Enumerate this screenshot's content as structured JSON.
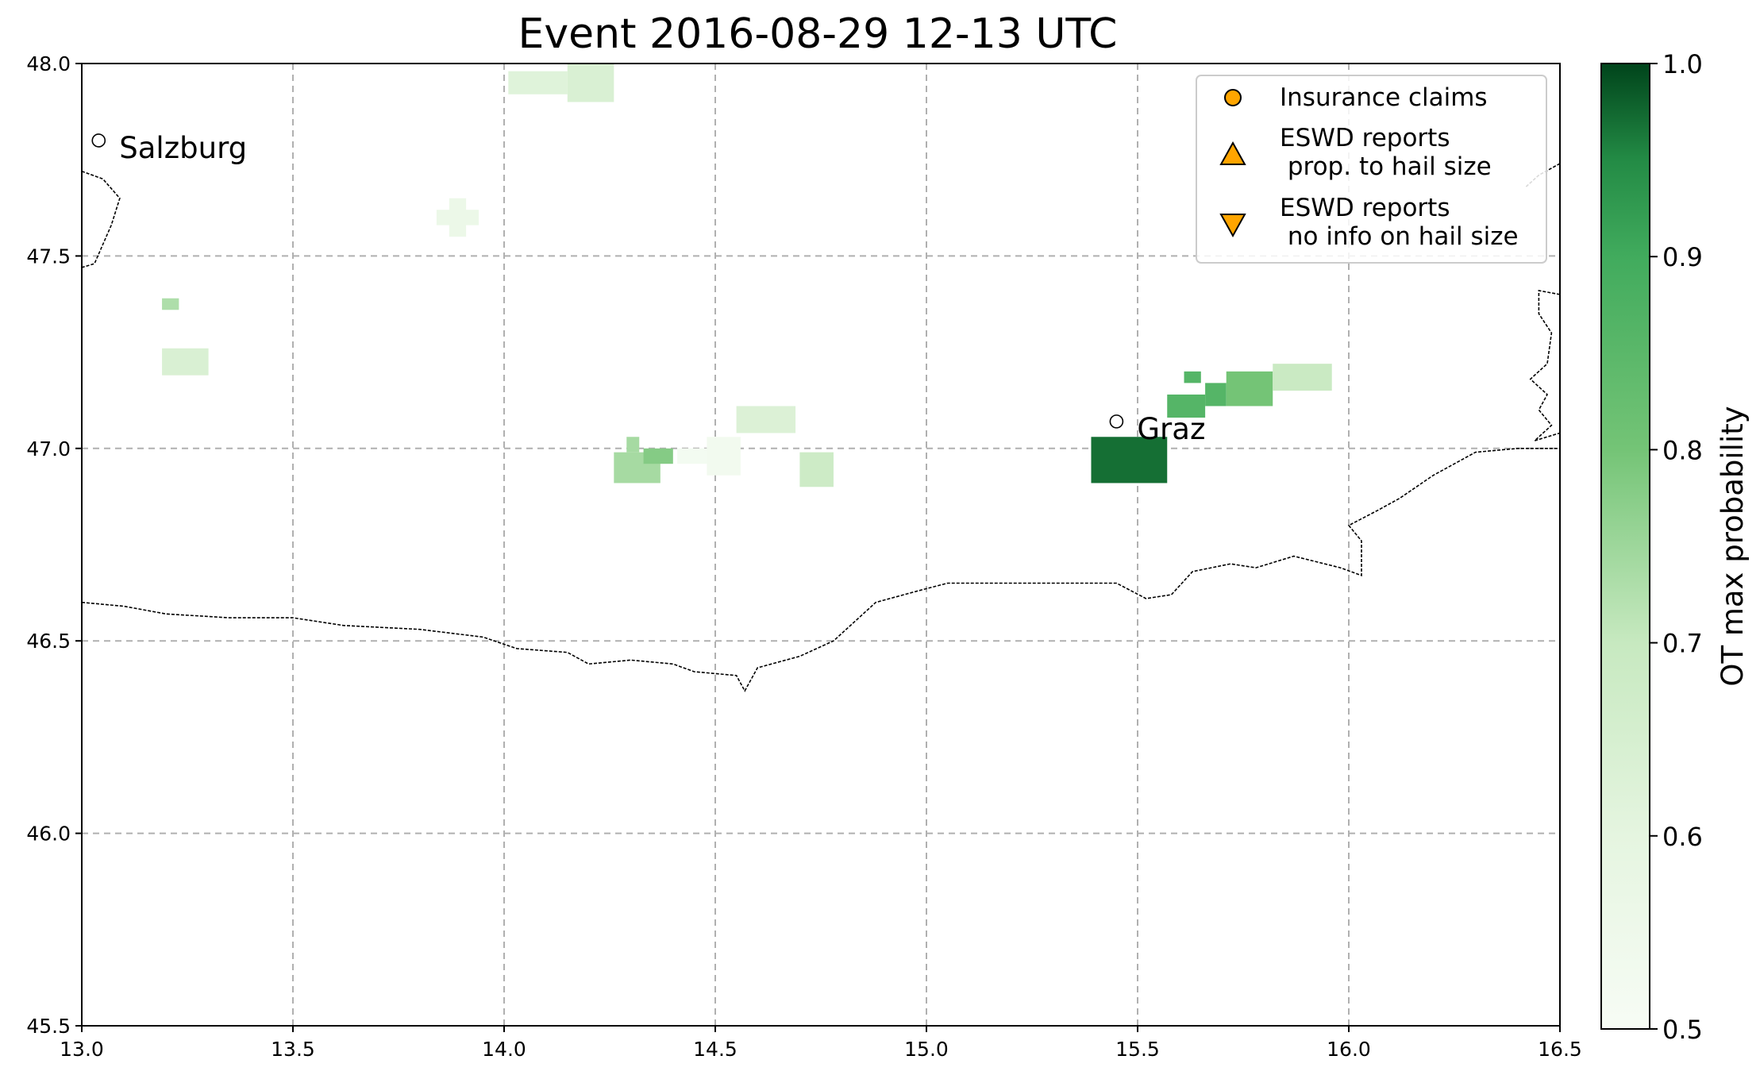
{
  "chart_data": {
    "type": "heatmap",
    "title": "Event 2016-08-29 12-13 UTC",
    "xlim": [
      13.0,
      16.5
    ],
    "ylim": [
      45.5,
      48.0
    ],
    "x_ticks": [
      "13.0",
      "13.5",
      "14.0",
      "14.5",
      "15.0",
      "15.5",
      "16.0",
      "16.5"
    ],
    "y_ticks": [
      "45.5",
      "46.0",
      "46.5",
      "47.0",
      "47.5",
      "48.0"
    ],
    "grid": true,
    "colorbar": {
      "label": "OT max probability",
      "range": [
        0.5,
        1.0
      ],
      "ticks": [
        "0.5",
        "0.6",
        "0.7",
        "0.8",
        "0.9",
        "1.0"
      ]
    },
    "cities": [
      {
        "name": "Salzburg",
        "lon": 13.04,
        "lat": 47.8
      },
      {
        "name": "Graz",
        "lon": 15.45,
        "lat": 47.07
      }
    ],
    "legend": {
      "placement": "top-right",
      "entries": [
        {
          "label": "Insurance claims",
          "marker": "circle"
        },
        {
          "label": "ESWD reports\n prop. to hail size",
          "marker": "triangle-up"
        },
        {
          "label": "ESWD reports\n no info on hail size",
          "marker": "triangle-down"
        }
      ],
      "marker_color": "#ffa500"
    },
    "ot_cells": [
      {
        "lon0": 14.01,
        "lon1": 14.15,
        "lat0": 47.92,
        "lat1": 47.98,
        "p": 0.62
      },
      {
        "lon0": 14.15,
        "lon1": 14.26,
        "lat0": 47.9,
        "lat1": 48.0,
        "p": 0.64
      },
      {
        "lon0": 13.84,
        "lon1": 13.94,
        "lat0": 47.58,
        "lat1": 47.62,
        "p": 0.56
      },
      {
        "lon0": 13.87,
        "lon1": 13.91,
        "lat0": 47.55,
        "lat1": 47.65,
        "p": 0.56
      },
      {
        "lon0": 13.19,
        "lon1": 13.23,
        "lat0": 47.36,
        "lat1": 47.39,
        "p": 0.73
      },
      {
        "lon0": 13.19,
        "lon1": 13.3,
        "lat0": 47.19,
        "lat1": 47.26,
        "p": 0.64
      },
      {
        "lon0": 14.26,
        "lon1": 14.37,
        "lat0": 46.91,
        "lat1": 46.99,
        "p": 0.74
      },
      {
        "lon0": 14.29,
        "lon1": 14.32,
        "lat0": 46.99,
        "lat1": 47.03,
        "p": 0.74
      },
      {
        "lon0": 14.33,
        "lon1": 14.4,
        "lat0": 46.96,
        "lat1": 47.0,
        "p": 0.78
      },
      {
        "lon0": 14.41,
        "lon1": 14.5,
        "lat0": 46.96,
        "lat1": 47.0,
        "p": 0.52
      },
      {
        "lon0": 14.48,
        "lon1": 14.56,
        "lat0": 46.93,
        "lat1": 47.03,
        "p": 0.53
      },
      {
        "lon0": 14.55,
        "lon1": 14.69,
        "lat0": 47.04,
        "lat1": 47.11,
        "p": 0.63
      },
      {
        "lon0": 14.7,
        "lon1": 14.78,
        "lat0": 46.9,
        "lat1": 46.99,
        "p": 0.68
      },
      {
        "lon0": 15.39,
        "lon1": 15.57,
        "lat0": 46.91,
        "lat1": 47.03,
        "p": 0.97
      },
      {
        "lon0": 15.57,
        "lon1": 15.66,
        "lat0": 47.08,
        "lat1": 47.14,
        "p": 0.86
      },
      {
        "lon0": 15.66,
        "lon1": 15.71,
        "lat0": 47.11,
        "lat1": 47.17,
        "p": 0.86
      },
      {
        "lon0": 15.61,
        "lon1": 15.65,
        "lat0": 47.17,
        "lat1": 47.2,
        "p": 0.86
      },
      {
        "lon0": 15.71,
        "lon1": 15.82,
        "lat0": 47.11,
        "lat1": 47.2,
        "p": 0.8
      },
      {
        "lon0": 15.82,
        "lon1": 15.96,
        "lat0": 47.15,
        "lat1": 47.22,
        "p": 0.69
      }
    ],
    "border_lines": [
      [
        [
          13.0,
          46.6
        ],
        [
          13.1,
          46.59
        ],
        [
          13.2,
          46.57
        ],
        [
          13.35,
          46.56
        ],
        [
          13.5,
          46.56
        ],
        [
          13.62,
          46.54
        ],
        [
          13.8,
          46.53
        ],
        [
          13.95,
          46.51
        ],
        [
          14.03,
          46.48
        ],
        [
          14.15,
          46.47
        ],
        [
          14.2,
          46.44
        ],
        [
          14.3,
          46.45
        ],
        [
          14.4,
          46.44
        ],
        [
          14.45,
          46.42
        ],
        [
          14.55,
          46.41
        ],
        [
          14.57,
          46.37
        ],
        [
          14.6,
          46.43
        ],
        [
          14.7,
          46.46
        ],
        [
          14.78,
          46.5
        ],
        [
          14.88,
          46.6
        ],
        [
          14.98,
          46.63
        ],
        [
          15.05,
          46.65
        ],
        [
          15.17,
          46.65
        ],
        [
          15.3,
          46.65
        ],
        [
          15.45,
          46.65
        ],
        [
          15.52,
          46.61
        ],
        [
          15.58,
          46.62
        ],
        [
          15.63,
          46.68
        ],
        [
          15.72,
          46.7
        ],
        [
          15.78,
          46.69
        ],
        [
          15.87,
          46.72
        ],
        [
          15.98,
          46.69
        ],
        [
          16.03,
          46.67
        ],
        [
          16.03,
          46.76
        ],
        [
          16.0,
          46.8
        ],
        [
          16.07,
          46.84
        ],
        [
          16.12,
          46.87
        ],
        [
          16.2,
          46.93
        ],
        [
          16.3,
          46.99
        ],
        [
          16.4,
          47.0
        ],
        [
          16.5,
          47.0
        ]
      ],
      [
        [
          13.0,
          47.72
        ],
        [
          13.05,
          47.7
        ],
        [
          13.09,
          47.65
        ],
        [
          13.07,
          47.58
        ],
        [
          13.03,
          47.48
        ],
        [
          13.0,
          47.47
        ]
      ],
      [
        [
          16.5,
          47.74
        ],
        [
          16.45,
          47.71
        ],
        [
          16.42,
          47.68
        ]
      ],
      [
        [
          16.5,
          47.4
        ],
        [
          16.45,
          47.41
        ],
        [
          16.45,
          47.35
        ],
        [
          16.48,
          47.3
        ],
        [
          16.47,
          47.22
        ],
        [
          16.43,
          47.18
        ],
        [
          16.47,
          47.14
        ],
        [
          16.45,
          47.1
        ],
        [
          16.48,
          47.06
        ],
        [
          16.44,
          47.02
        ],
        [
          16.5,
          47.04
        ]
      ]
    ]
  }
}
